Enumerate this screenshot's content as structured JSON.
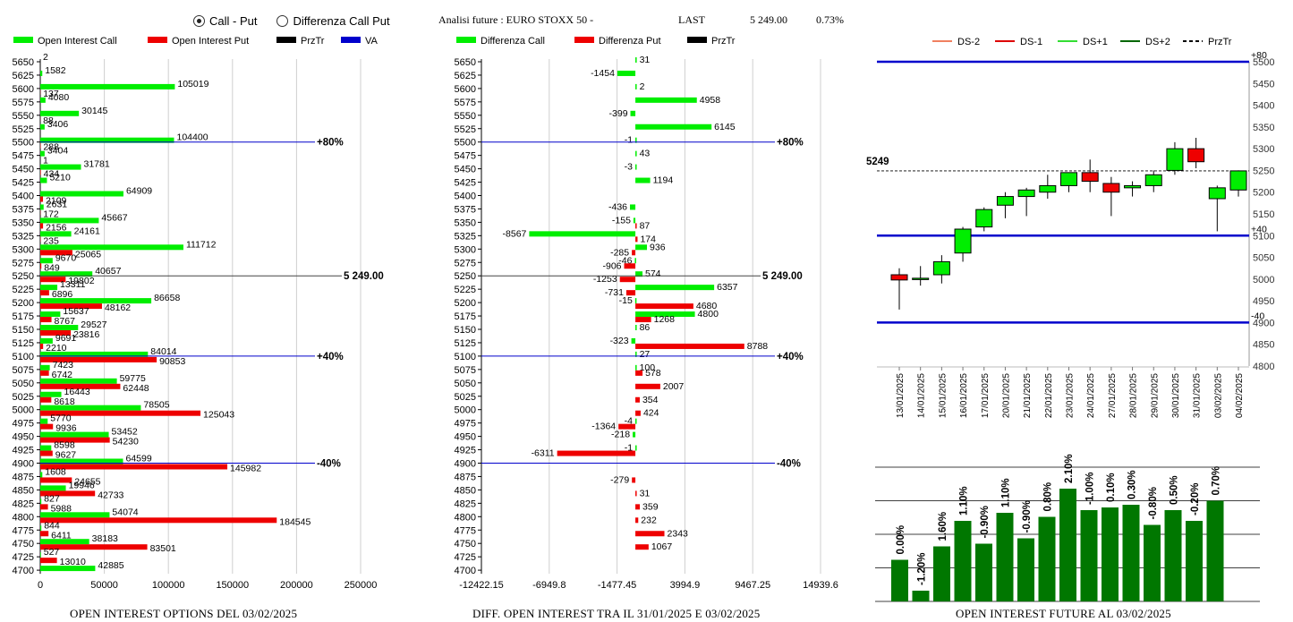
{
  "header": {
    "radio_call_put": "Call - Put",
    "radio_diff": "Differenza Call Put",
    "title": "Analisi future : EURO STOXX 50 -",
    "last_label": "LAST",
    "last_value": "5 249.00",
    "change": "0.73%"
  },
  "colors": {
    "call": "#00ee00",
    "put": "#ee0000",
    "prztr": "#000000",
    "va": "#0000cc",
    "bar_green": "#007700"
  },
  "chart_data": [
    {
      "type": "bar",
      "orientation": "horizontal",
      "caption": "OPEN INTEREST OPTIONS DEL 03/02/2025",
      "legend": [
        "Open Interest Call",
        "Open Interest Put",
        "PrzTr",
        "VA"
      ],
      "strikes": [
        5650,
        5625,
        5600,
        5575,
        5550,
        5525,
        5500,
        5475,
        5450,
        5425,
        5400,
        5375,
        5350,
        5325,
        5300,
        5275,
        5250,
        5225,
        5200,
        5175,
        5150,
        5125,
        5100,
        5075,
        5050,
        5025,
        5000,
        4975,
        4950,
        4925,
        4900,
        4875,
        4850,
        4825,
        4800,
        4775,
        4750,
        4725,
        4700
      ],
      "series": [
        {
          "name": "Open Interest Call",
          "values": [
            2,
            1582,
            105019,
            4080,
            30145,
            3406,
            104400,
            3404,
            31781,
            5210,
            64909,
            2631,
            45667,
            24161,
            111712,
            9670,
            40657,
            13311,
            86658,
            15637,
            29527,
            9691,
            84014,
            7423,
            59775,
            16443,
            78505,
            5770,
            53452,
            8598,
            64599,
            1608,
            19946,
            827,
            54074,
            844,
            38183,
            527,
            42885
          ]
        },
        {
          "name": "Open Interest Put",
          "values": [
            0,
            0,
            137,
            0,
            88,
            0,
            288,
            1,
            434,
            0,
            2109,
            172,
            2156,
            235,
            25065,
            849,
            19802,
            6896,
            48162,
            8767,
            23816,
            2210,
            90853,
            6742,
            62448,
            8618,
            125043,
            9936,
            54230,
            9627,
            145982,
            24655,
            42733,
            5988,
            184545,
            6411,
            83501,
            13010,
            0
          ]
        }
      ],
      "xticks": [
        "0",
        "50000",
        "100000",
        "150000",
        "200000",
        "250000"
      ],
      "xlim": [
        0,
        250000
      ],
      "lines": [
        {
          "strike": 5500,
          "label": "+80%"
        },
        {
          "strike": 5250,
          "label": "5 249.00"
        },
        {
          "strike": 5100,
          "label": "+40%"
        },
        {
          "strike": 4900,
          "label": "-40%"
        }
      ]
    },
    {
      "type": "bar",
      "orientation": "horizontal",
      "caption": "DIFF. OPEN INTEREST TRA IL 31/01/2025 E 03/02/2025",
      "legend": [
        "Differenza Call",
        "Differenza Put",
        "PrzTr"
      ],
      "strikes": [
        5650,
        5625,
        5600,
        5575,
        5550,
        5525,
        5500,
        5475,
        5450,
        5425,
        5400,
        5375,
        5350,
        5325,
        5300,
        5275,
        5250,
        5225,
        5200,
        5175,
        5150,
        5125,
        5100,
        5075,
        5050,
        5025,
        5000,
        4975,
        4950,
        4925,
        4900,
        4875,
        4850,
        4825,
        4800,
        4775,
        4750,
        4725,
        4700
      ],
      "series": [
        {
          "name": "Differenza Call",
          "values": [
            31,
            -1454,
            2,
            4958,
            -399,
            6145,
            -1,
            43,
            -3,
            1194,
            null,
            -436,
            -155,
            -8567,
            936,
            -46,
            574,
            6357,
            -15,
            4800,
            86,
            -323,
            27,
            100,
            null,
            null,
            null,
            -4,
            -218,
            -1,
            null,
            null,
            null,
            null,
            null,
            null,
            null,
            null,
            null
          ]
        },
        {
          "name": "Differenza Put",
          "values": [
            null,
            null,
            null,
            null,
            null,
            null,
            null,
            null,
            null,
            null,
            null,
            null,
            87,
            174,
            -285,
            -906,
            -1253,
            -731,
            4680,
            1268,
            null,
            8788,
            null,
            578,
            2007,
            354,
            424,
            -1364,
            null,
            -6311,
            null,
            -279,
            31,
            359,
            232,
            2343,
            1067,
            null,
            null
          ]
        }
      ],
      "xticks": [
        "-12422.15",
        "-6949.8",
        "-1477.45",
        "3994.9",
        "9467.25",
        "14939.6"
      ],
      "xlim": [
        -12422.15,
        14939.6
      ],
      "lines": [
        {
          "strike": 5500,
          "label": "+80%"
        },
        {
          "strike": 5250,
          "label": "5 249.00"
        },
        {
          "strike": 5100,
          "label": "+40%"
        },
        {
          "strike": 4900,
          "label": "-40%"
        }
      ]
    },
    {
      "type": "candlestick",
      "legend": [
        "DS-2",
        "DS-1",
        "DS+1",
        "DS+2",
        "PrzTr"
      ],
      "legend_colors": [
        "#f08060",
        "#dd0000",
        "#33dd33",
        "#006600",
        "#000000"
      ],
      "dates": [
        "13/01/2025",
        "14/01/2025",
        "15/01/2025",
        "16/01/2025",
        "17/01/2025",
        "20/01/2025",
        "21/01/2025",
        "22/01/2025",
        "23/01/2025",
        "24/01/2025",
        "27/01/2025",
        "28/01/2025",
        "29/01/2025",
        "30/01/2025",
        "31/01/2025",
        "03/02/2025",
        "04/02/2025"
      ],
      "ohlc": [
        [
          5010,
          5025,
          4930,
          4998
        ],
        [
          5000,
          5030,
          4985,
          5002
        ],
        [
          5010,
          5055,
          4990,
          5040
        ],
        [
          5060,
          5120,
          5040,
          5115
        ],
        [
          5120,
          5165,
          5110,
          5160
        ],
        [
          5170,
          5200,
          5140,
          5190
        ],
        [
          5190,
          5210,
          5145,
          5205
        ],
        [
          5200,
          5240,
          5185,
          5215
        ],
        [
          5215,
          5245,
          5200,
          5245
        ],
        [
          5245,
          5275,
          5200,
          5225
        ],
        [
          5220,
          5235,
          5145,
          5200
        ],
        [
          5210,
          5225,
          5190,
          5215
        ],
        [
          5215,
          5250,
          5200,
          5240
        ],
        [
          5250,
          5315,
          5240,
          5300
        ],
        [
          5300,
          5325,
          5255,
          5270
        ],
        [
          5185,
          5215,
          5110,
          5210
        ],
        [
          5205,
          5250,
          5190,
          5249
        ]
      ],
      "yticks": [
        4800,
        4850,
        4900,
        4950,
        5000,
        5050,
        5100,
        5150,
        5200,
        5250,
        5300,
        5350,
        5400,
        5450,
        5500
      ],
      "ylim": [
        4800,
        5500
      ],
      "przTr": 5249,
      "przTr_label": "5249",
      "levels": [
        {
          "value": 5500,
          "label": "+80"
        },
        {
          "value": 5100,
          "label": "+40"
        },
        {
          "value": 4900,
          "label": "-40"
        }
      ]
    },
    {
      "type": "bar",
      "caption": "OPEN INTEREST FUTURE AL 03/02/2025",
      "labels": [
        "0.00%",
        "-1.20%",
        "1.60%",
        "1.10%",
        "-0.90%",
        "1.10%",
        "-0.90%",
        "0.80%",
        "2.10%",
        "-1.00%",
        "0.10%",
        "0.30%",
        "-0.80%",
        "0.50%",
        "-0.20%",
        "0.70%"
      ],
      "values": [
        0.0,
        -1.2,
        1.6,
        1.1,
        -0.9,
        1.1,
        -0.9,
        0.8,
        2.1,
        -1.0,
        0.1,
        0.3,
        -0.8,
        0.5,
        -0.2,
        0.7
      ],
      "heights_relative": [
        0.31,
        0.08,
        0.41,
        0.6,
        0.43,
        0.66,
        0.47,
        0.63,
        0.84,
        0.68,
        0.7,
        0.72,
        0.57,
        0.68,
        0.6,
        0.75
      ]
    }
  ]
}
